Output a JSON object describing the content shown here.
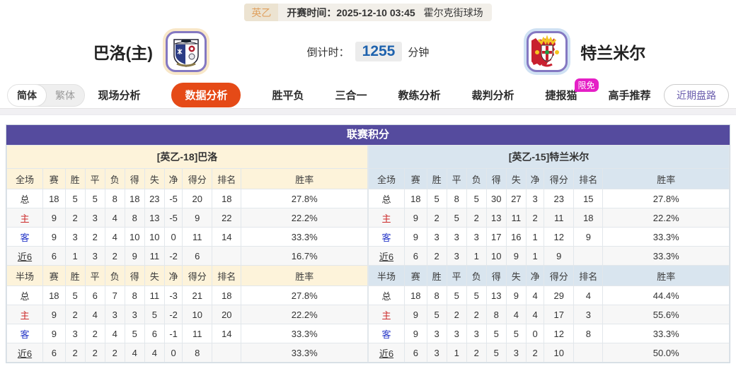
{
  "colors": {
    "accent_orange": "#e54a17",
    "purple_header": "#554b9e",
    "cream_panel": "#fdf3da",
    "blue_panel": "#d9e5ef",
    "badge_pink": "#e51fc6",
    "countdown_blue": "#1f63ae",
    "home_red": "#cc2a2a",
    "away_blue": "#2637c8",
    "link_purple": "#6a5dad"
  },
  "top_bar": {
    "league_badge": "英乙",
    "kickoff": "开赛时间：2025-12-10 03:45",
    "venue": "霍尔克街球场"
  },
  "match_header": {
    "home_team": "巴洛(主)",
    "away_team": "特兰米尔",
    "countdown_label": "倒计时：",
    "countdown_value": "1255",
    "countdown_unit": "分钟"
  },
  "nav": {
    "lang_simplified": "简体",
    "lang_traditional": "繁体",
    "tabs": [
      {
        "label": "现场分析",
        "active": false
      },
      {
        "label": "数据分析",
        "active": true
      },
      {
        "label": "胜平负",
        "active": false
      },
      {
        "label": "三合一",
        "active": false
      },
      {
        "label": "教练分析",
        "active": false
      },
      {
        "label": "裁判分析",
        "active": false
      },
      {
        "label": "捷报猫",
        "active": false,
        "badge": "限免"
      },
      {
        "label": "高手推荐",
        "active": false
      }
    ],
    "right_button": "近期盘路"
  },
  "table": {
    "title": "联赛积分",
    "columns_full": [
      "全场",
      "赛",
      "胜",
      "平",
      "负",
      "得",
      "失",
      "净",
      "得分",
      "排名",
      "胜率"
    ],
    "columns_half": [
      "半场",
      "赛",
      "胜",
      "平",
      "负",
      "得",
      "失",
      "净",
      "得分",
      "排名",
      "胜率"
    ],
    "teams": [
      {
        "name": "[英乙-18]巴洛",
        "theme": "theme-cream",
        "full": [
          [
            "总",
            "18",
            "5",
            "5",
            "8",
            "18",
            "23",
            "-5",
            "20",
            "18",
            "27.8%"
          ],
          [
            "主",
            "9",
            "2",
            "3",
            "4",
            "8",
            "13",
            "-5",
            "9",
            "22",
            "22.2%"
          ],
          [
            "客",
            "9",
            "3",
            "2",
            "4",
            "10",
            "10",
            "0",
            "11",
            "14",
            "33.3%"
          ],
          [
            "近6",
            "6",
            "1",
            "3",
            "2",
            "9",
            "11",
            "-2",
            "6",
            "",
            "16.7%"
          ]
        ],
        "half": [
          [
            "总",
            "18",
            "5",
            "6",
            "7",
            "8",
            "11",
            "-3",
            "21",
            "18",
            "27.8%"
          ],
          [
            "主",
            "9",
            "2",
            "4",
            "3",
            "3",
            "5",
            "-2",
            "10",
            "20",
            "22.2%"
          ],
          [
            "客",
            "9",
            "3",
            "2",
            "4",
            "5",
            "6",
            "-1",
            "11",
            "14",
            "33.3%"
          ],
          [
            "近6",
            "6",
            "2",
            "2",
            "2",
            "4",
            "4",
            "0",
            "8",
            "",
            "33.3%"
          ]
        ]
      },
      {
        "name": "[英乙-15]特兰米尔",
        "theme": "theme-blue",
        "full": [
          [
            "总",
            "18",
            "5",
            "8",
            "5",
            "30",
            "27",
            "3",
            "23",
            "15",
            "27.8%"
          ],
          [
            "主",
            "9",
            "2",
            "5",
            "2",
            "13",
            "11",
            "2",
            "11",
            "18",
            "22.2%"
          ],
          [
            "客",
            "9",
            "3",
            "3",
            "3",
            "17",
            "16",
            "1",
            "12",
            "9",
            "33.3%"
          ],
          [
            "近6",
            "6",
            "2",
            "3",
            "1",
            "10",
            "9",
            "1",
            "9",
            "",
            "33.3%"
          ]
        ],
        "half": [
          [
            "总",
            "18",
            "8",
            "5",
            "5",
            "13",
            "9",
            "4",
            "29",
            "4",
            "44.4%"
          ],
          [
            "主",
            "9",
            "5",
            "2",
            "2",
            "8",
            "4",
            "4",
            "17",
            "3",
            "55.6%"
          ],
          [
            "客",
            "9",
            "3",
            "3",
            "3",
            "5",
            "5",
            "0",
            "12",
            "8",
            "33.3%"
          ],
          [
            "近6",
            "6",
            "3",
            "1",
            "2",
            "5",
            "3",
            "2",
            "10",
            "",
            "50.0%"
          ]
        ]
      }
    ]
  }
}
